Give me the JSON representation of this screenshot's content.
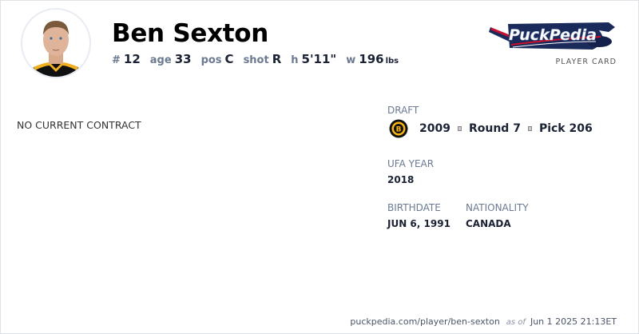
{
  "player": {
    "name": "Ben Sexton",
    "number_label": "#",
    "number": "12",
    "age_label": "age",
    "age": "33",
    "pos_label": "pos",
    "pos": "C",
    "shot_label": "shot",
    "shot": "R",
    "height_label": "h",
    "height": "5'11\"",
    "weight_label": "w",
    "weight": "196",
    "weight_unit": "lbs"
  },
  "brand": {
    "logo_text": "PuckPedia",
    "subtitle": "PLAYER CARD"
  },
  "contract": {
    "status": "NO CURRENT CONTRACT"
  },
  "draft": {
    "label": "DRAFT",
    "team_icon": "boston-bruins-logo",
    "year": "2009",
    "round": "Round 7",
    "pick": "Pick 206"
  },
  "ufa": {
    "label": "UFA YEAR",
    "value": "2018"
  },
  "birthdate": {
    "label": "BIRTHDATE",
    "value": "JUN 6, 1991"
  },
  "nationality": {
    "label": "NATIONALITY",
    "value": "CANADA"
  },
  "footer": {
    "url": "puckpedia.com/player/ben-sexton",
    "as_of": "as of",
    "timestamp": "Jun 1 2025 21:13ET"
  },
  "colors": {
    "navy": "#1a2a5a",
    "red": "#c8102e",
    "bruins_gold": "#fcb514"
  }
}
